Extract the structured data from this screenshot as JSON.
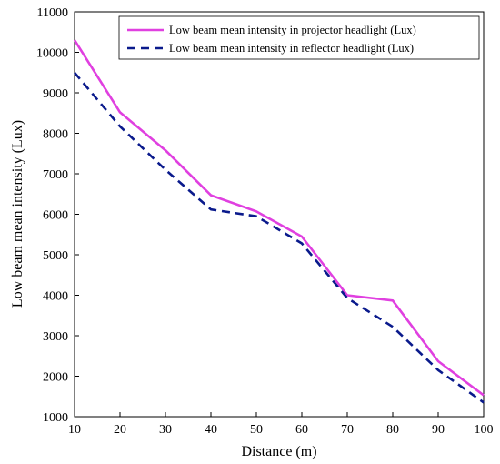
{
  "chart_data": {
    "type": "line",
    "title": "",
    "xlabel": "Distance (m)",
    "ylabel": "Low beam mean intensity (Lux)",
    "xlim": [
      10,
      100
    ],
    "ylim": [
      1000,
      11000
    ],
    "x_ticks": [
      "10",
      "20",
      "30",
      "40",
      "50",
      "60",
      "70",
      "80",
      "90",
      "100"
    ],
    "y_ticks": [
      "1000",
      "2000",
      "3000",
      "4000",
      "5000",
      "6000",
      "7000",
      "8000",
      "9000",
      "10000",
      "11000"
    ],
    "x": [
      10,
      20,
      30,
      40,
      50,
      60,
      70,
      80,
      90,
      100
    ],
    "series": [
      {
        "name": "Low beam mean intensity in  projector headlight (Lux)",
        "values": [
          10300,
          8520,
          7580,
          6470,
          6070,
          5450,
          4000,
          3870,
          2370,
          1530
        ],
        "color": "#e040e0",
        "line_style": "solid"
      },
      {
        "name": "Low beam mean intensity in reflector headlight (Lux)",
        "values": [
          9500,
          8170,
          7100,
          6120,
          5950,
          5280,
          3930,
          3220,
          2150,
          1350
        ],
        "color": "#0a1a8c",
        "line_style": "dashed"
      }
    ],
    "grid": false,
    "legend_position": "top-right"
  }
}
